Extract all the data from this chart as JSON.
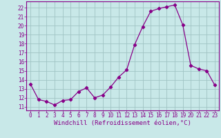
{
  "x": [
    0,
    1,
    2,
    3,
    4,
    5,
    6,
    7,
    8,
    9,
    10,
    11,
    12,
    13,
    14,
    15,
    16,
    17,
    18,
    19,
    20,
    21,
    22,
    23
  ],
  "y": [
    13.5,
    11.8,
    11.6,
    11.2,
    11.7,
    11.8,
    12.7,
    13.1,
    12.0,
    12.3,
    13.2,
    14.3,
    15.1,
    17.9,
    19.9,
    21.6,
    21.9,
    22.1,
    22.3,
    20.1,
    15.6,
    15.2,
    15.0,
    13.4
  ],
  "line_color": "#880088",
  "marker": "D",
  "marker_size": 2.2,
  "bg_color": "#c8e8e8",
  "grid_color": "#a0c4c4",
  "xlabel": "Windchill (Refroidissement éolien,°C)",
  "ylabel_ticks": [
    11,
    12,
    13,
    14,
    15,
    16,
    17,
    18,
    19,
    20,
    21,
    22
  ],
  "ylim": [
    10.6,
    22.7
  ],
  "xlim": [
    -0.5,
    23.5
  ],
  "axis_color": "#880088",
  "tick_color": "#880088",
  "xlabel_color": "#880088",
  "tick_fontsize": 5.5,
  "xlabel_fontsize": 6.5
}
